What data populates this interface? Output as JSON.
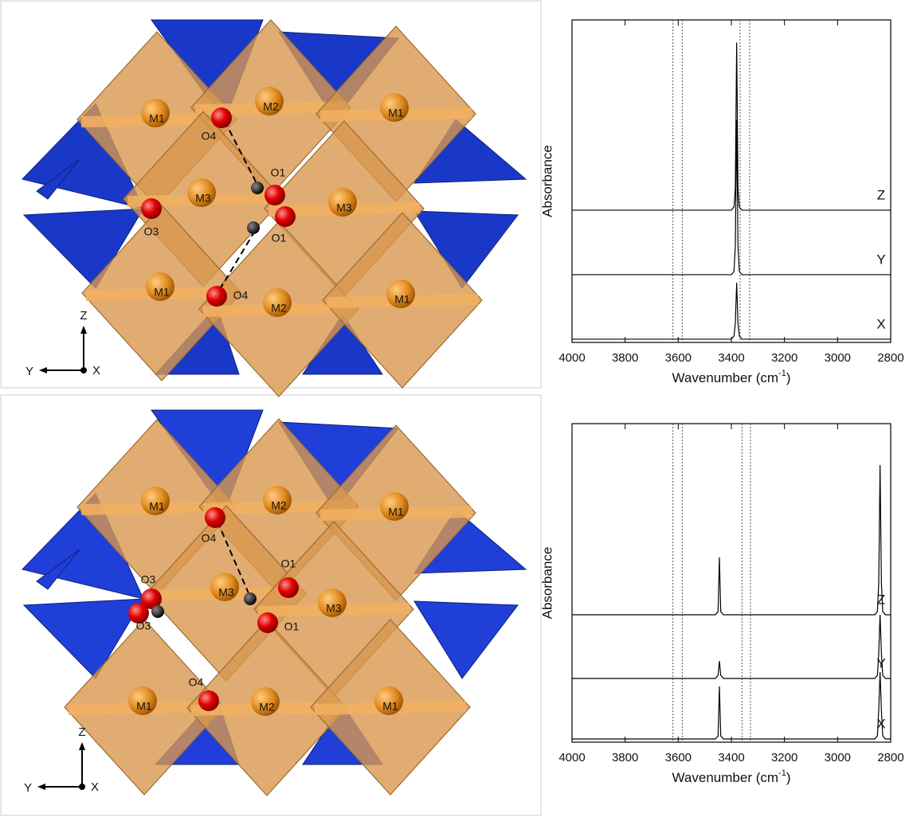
{
  "structures": [
    {
      "labels": [
        "M1",
        "M2",
        "M1",
        "O4",
        "O1",
        "M3",
        "M3",
        "O3",
        "O1",
        "M1",
        "O4",
        "M2",
        "M1"
      ],
      "axes": [
        "Z",
        "Y",
        "X"
      ]
    },
    {
      "labels": [
        "M1",
        "M2",
        "M1",
        "O4",
        "O3",
        "O1",
        "M3",
        "M3",
        "O3",
        "O1",
        "O4",
        "M1",
        "M2",
        "M1"
      ],
      "axes": [
        "Z",
        "Y",
        "X"
      ]
    }
  ],
  "chart_data": [
    {
      "type": "line",
      "ylabel": "Absorbance",
      "xlabel": [
        "Wavenumber (cm",
        "-1",
        ")"
      ],
      "xlim": [
        4000,
        2800
      ],
      "xticks": [
        4000,
        3800,
        3600,
        3400,
        3200,
        3000,
        2800
      ],
      "ylim": [
        0,
        100
      ],
      "reference_lines": [
        3620,
        3585,
        3367,
        3331
      ],
      "series": [
        {
          "name": "Z",
          "color": "#000000",
          "x": [
            4000,
            3400,
            3390,
            3385,
            3380,
            3375,
            3370,
            3360,
            2800
          ],
          "values": [
            41,
            41,
            42,
            48,
            93,
            48,
            42,
            41,
            41
          ]
        },
        {
          "name": "Y",
          "color": "#000000",
          "x": [
            4000,
            3400,
            3390,
            3385,
            3380,
            3375,
            3370,
            3360,
            2800
          ],
          "values": [
            21,
            21,
            22,
            30,
            69,
            30,
            22,
            21,
            21
          ]
        },
        {
          "name": "X",
          "color": "#000000",
          "x": [
            4000,
            3400,
            3390,
            3385,
            3380,
            3375,
            3370,
            3360,
            2800
          ],
          "values": [
            1,
            1,
            2,
            6,
            18.5,
            6,
            2,
            1,
            1
          ]
        }
      ]
    },
    {
      "type": "line",
      "ylabel": "Absorbance",
      "xlabel": [
        "Wavenumber (cm",
        "-1",
        ")"
      ],
      "xlim": [
        4000,
        2800
      ],
      "xticks": [
        4000,
        3800,
        3600,
        3400,
        3200,
        3000,
        2800
      ],
      "ylim": [
        0,
        100
      ],
      "reference_lines": [
        3620,
        3585,
        3360,
        3328
      ],
      "series": [
        {
          "name": "Z",
          "color": "#000000",
          "x": [
            4000,
            3460,
            3450,
            3445,
            3440,
            3430,
            2860,
            2850,
            2845,
            2840,
            2835,
            2830,
            2820,
            2800
          ],
          "values": [
            40,
            40,
            41,
            58,
            41,
            40,
            40,
            41,
            50,
            87,
            50,
            41,
            40,
            40
          ]
        },
        {
          "name": "Y",
          "color": "#000000",
          "x": [
            4000,
            3460,
            3450,
            3445,
            3440,
            3430,
            2860,
            2850,
            2845,
            2840,
            2835,
            2830,
            2820,
            2800
          ],
          "values": [
            20,
            20,
            21,
            25.5,
            21,
            20,
            20,
            21,
            28,
            40,
            28,
            21,
            20,
            20
          ]
        },
        {
          "name": "X",
          "color": "#000000",
          "x": [
            4000,
            3460,
            3450,
            3445,
            3440,
            3430,
            2860,
            2850,
            2845,
            2840,
            2835,
            2830,
            2820,
            2800
          ],
          "values": [
            1,
            1,
            2,
            17.5,
            2,
            1,
            1,
            2,
            10,
            22,
            10,
            2,
            1,
            1
          ]
        }
      ]
    }
  ]
}
